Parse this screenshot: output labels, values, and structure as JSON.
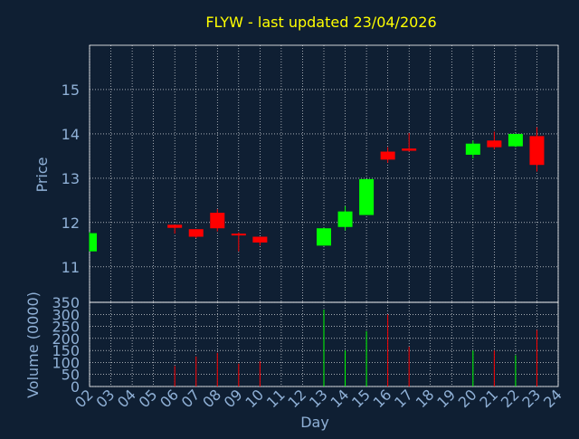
{
  "colors": {
    "background": "#0f1f33",
    "title": "#ffff00",
    "axis_text": "#8fb0d6",
    "grid": "#ffffff",
    "up": "#00ff00",
    "down": "#ff0000",
    "plot_border": "#ffffff"
  },
  "chart_data": [
    {
      "type": "candlestick",
      "title": "FLYW - last updated 23/04/2026",
      "ylabel": "Price",
      "ylim": [
        10.2,
        16
      ],
      "yticks": [
        11,
        12,
        13,
        14,
        15
      ],
      "grid": true,
      "candles": [
        {
          "day": "02",
          "open": 11.35,
          "high": 11.78,
          "low": 11.35,
          "close": 11.76
        },
        {
          "day": "06",
          "open": 11.95,
          "high": 11.95,
          "low": 11.75,
          "close": 11.88
        },
        {
          "day": "07",
          "open": 11.85,
          "high": 11.85,
          "low": 11.65,
          "close": 11.68
        },
        {
          "day": "08",
          "open": 12.22,
          "high": 12.3,
          "low": 11.8,
          "close": 11.87
        },
        {
          "day": "09",
          "open": 11.75,
          "high": 11.78,
          "low": 11.35,
          "close": 11.72
        },
        {
          "day": "10",
          "open": 11.68,
          "high": 11.68,
          "low": 11.48,
          "close": 11.55
        },
        {
          "day": "13",
          "open": 11.48,
          "high": 11.88,
          "low": 11.48,
          "close": 11.87
        },
        {
          "day": "14",
          "open": 11.9,
          "high": 12.37,
          "low": 11.82,
          "close": 12.25
        },
        {
          "day": "15",
          "open": 12.17,
          "high": 12.98,
          "low": 12.17,
          "close": 12.98
        },
        {
          "day": "16",
          "open": 13.6,
          "high": 13.7,
          "low": 13.35,
          "close": 13.42
        },
        {
          "day": "17",
          "open": 13.67,
          "high": 14.02,
          "low": 13.6,
          "close": 13.62
        },
        {
          "day": "20",
          "open": 13.53,
          "high": 13.85,
          "low": 13.45,
          "close": 13.78
        },
        {
          "day": "21",
          "open": 13.85,
          "high": 14.05,
          "low": 13.65,
          "close": 13.7
        },
        {
          "day": "22",
          "open": 13.72,
          "high": 14.0,
          "low": 13.7,
          "close": 14.0
        },
        {
          "day": "23",
          "open": 13.95,
          "high": 14.15,
          "low": 13.15,
          "close": 13.3
        }
      ]
    },
    {
      "type": "bar",
      "ylabel": "Volume (0000)",
      "xlabel": "Day",
      "ylim": [
        0,
        350
      ],
      "yticks": [
        0,
        50,
        100,
        150,
        200,
        250,
        300,
        350
      ],
      "categories": [
        "02",
        "03",
        "04",
        "05",
        "06",
        "07",
        "08",
        "09",
        "10",
        "11",
        "12",
        "13",
        "14",
        "15",
        "16",
        "17",
        "18",
        "19",
        "20",
        "21",
        "22",
        "23",
        "24"
      ],
      "volumes": [
        {
          "day": "06",
          "value": 85,
          "direction": "down"
        },
        {
          "day": "07",
          "value": 125,
          "direction": "down"
        },
        {
          "day": "08",
          "value": 140,
          "direction": "down"
        },
        {
          "day": "09",
          "value": 95,
          "direction": "down"
        },
        {
          "day": "10",
          "value": 105,
          "direction": "down"
        },
        {
          "day": "13",
          "value": 320,
          "direction": "up"
        },
        {
          "day": "14",
          "value": 150,
          "direction": "up"
        },
        {
          "day": "15",
          "value": 230,
          "direction": "up"
        },
        {
          "day": "16",
          "value": 300,
          "direction": "down"
        },
        {
          "day": "17",
          "value": 165,
          "direction": "down"
        },
        {
          "day": "20",
          "value": 150,
          "direction": "up"
        },
        {
          "day": "21",
          "value": 150,
          "direction": "down"
        },
        {
          "day": "22",
          "value": 130,
          "direction": "up"
        },
        {
          "day": "23",
          "value": 235,
          "direction": "down"
        }
      ]
    }
  ]
}
